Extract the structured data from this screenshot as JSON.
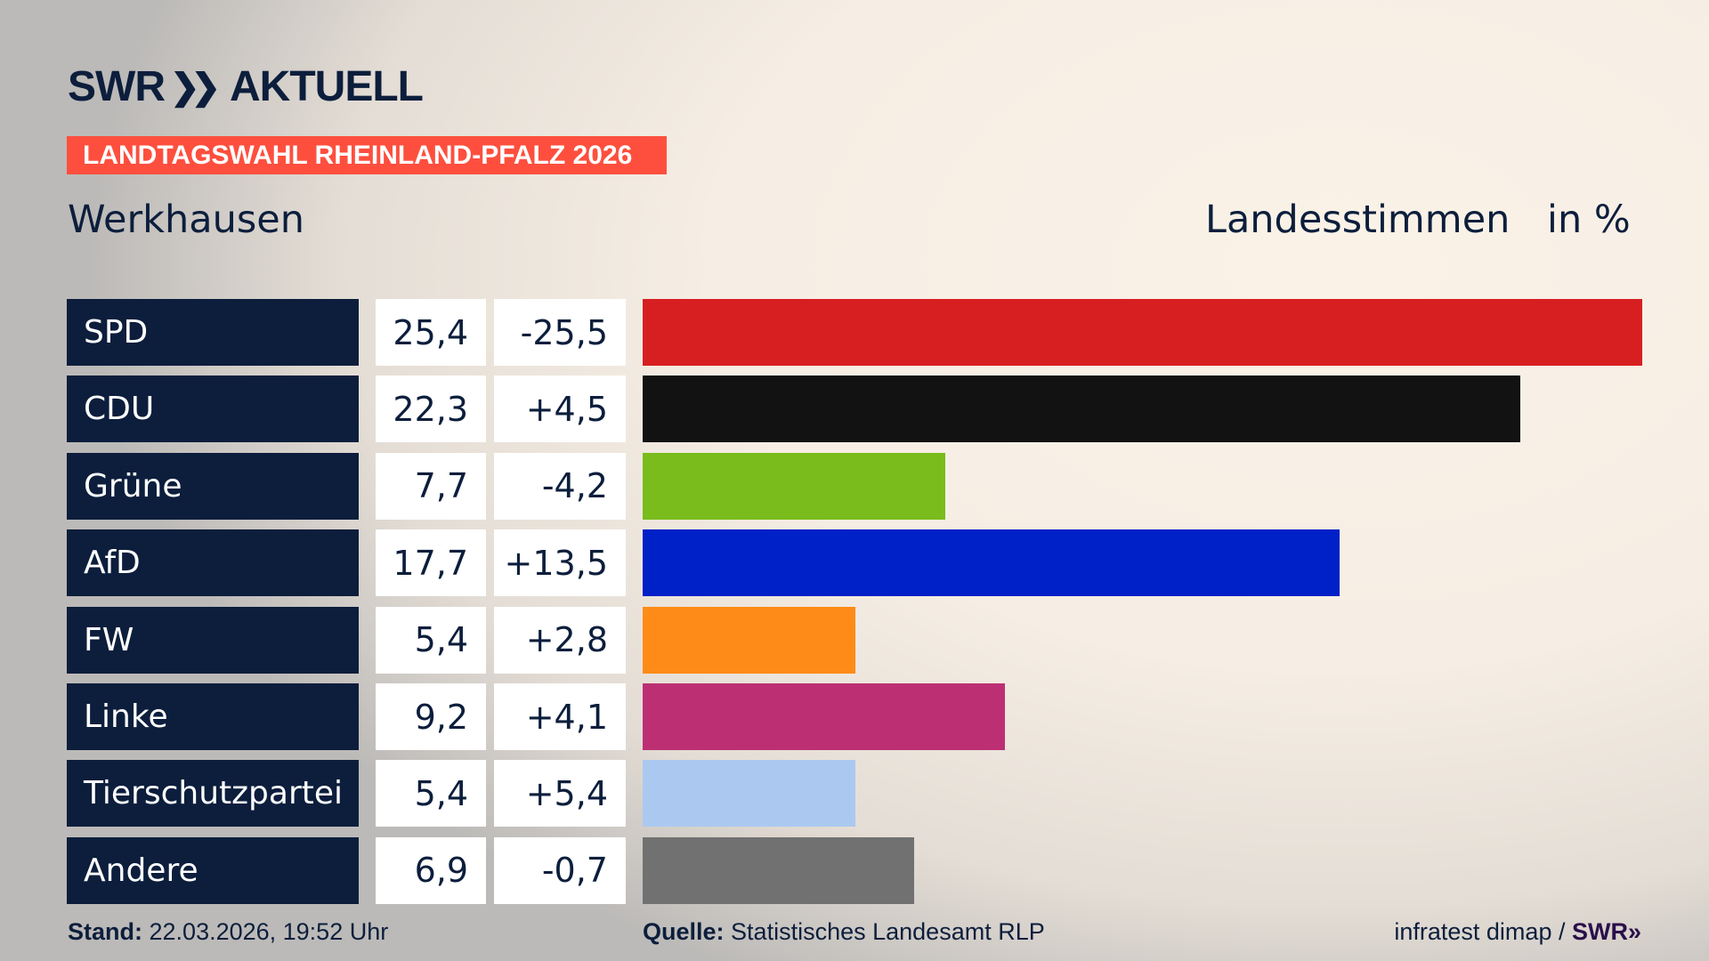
{
  "logo": {
    "text": "SWR AKTUELL",
    "brand": "SWR",
    "chevrons": "»",
    "suffix": "AKTUELL"
  },
  "banner": {
    "text": "LANDTAGSWAHL RHEINLAND-PFALZ 2026",
    "color": "#fe4f3e"
  },
  "place": "Werkhausen",
  "measure": "Landesstimmen",
  "unit": "in %",
  "chart_data": {
    "type": "bar",
    "orientation": "horizontal",
    "categories": [
      "SPD",
      "CDU",
      "Grüne",
      "AfD",
      "FW",
      "Linke",
      "Tierschutzpartei",
      "Andere"
    ],
    "values": [
      25.4,
      22.3,
      7.7,
      17.7,
      5.4,
      9.2,
      5.4,
      6.9
    ],
    "value_labels": [
      "25,4",
      "22,3",
      "7,7",
      "17,7",
      "5,4",
      "9,2",
      "5,4",
      "6,9"
    ],
    "diff_labels": [
      "-25,5",
      "+4,5",
      "-4,2",
      "+13,5",
      "+2,8",
      "+4,1",
      "+5,4",
      "-0,7"
    ],
    "colors": [
      "#d71f21",
      "#121212",
      "#79bc1b",
      "#0020c8",
      "#fe8b17",
      "#bc3073",
      "#abc9f0",
      "#717171"
    ],
    "xlim": [
      0,
      25.4
    ],
    "grid": false
  },
  "footer": {
    "stand_label": "Stand:",
    "stand_value": "22.03.2026, 19:52 Uhr",
    "source_label": "Quelle:",
    "source_value": "Statistisches Landesamt RLP",
    "credit": "infratest dimap /",
    "credit_brand": "SWR»"
  }
}
